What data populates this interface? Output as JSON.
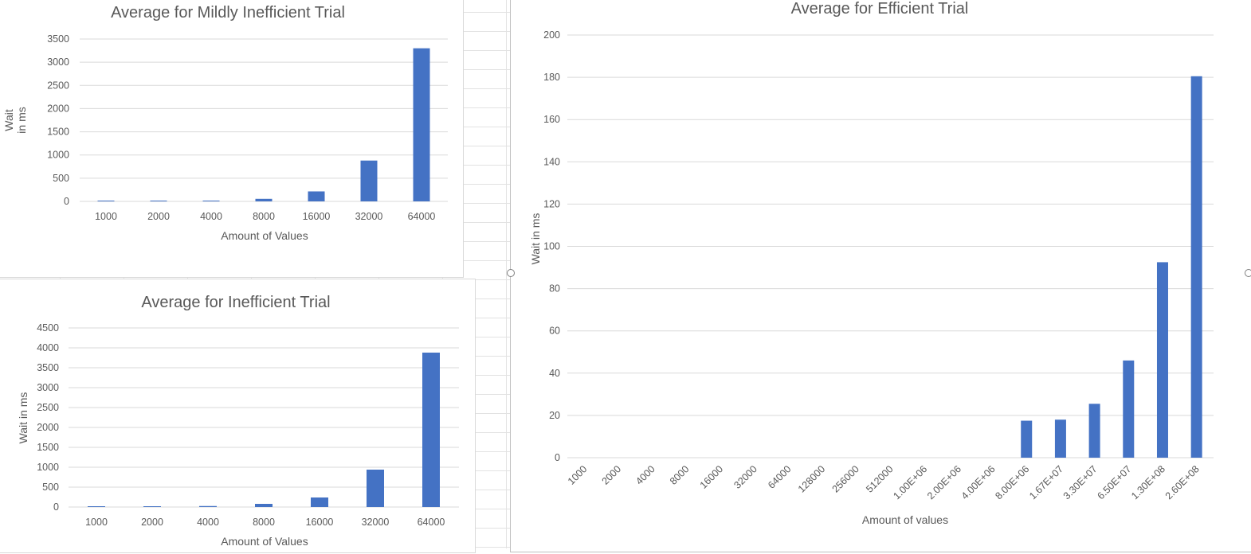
{
  "colors": {
    "bar": "#4472c4",
    "text": "#595959",
    "gridline": "#d9d9d9"
  },
  "chart_data": [
    {
      "id": "mild",
      "type": "bar",
      "title": "Average for Mildly Inefficient Trial",
      "xlabel": "Amount of Values",
      "ylabel": [
        "Wait",
        "in ms"
      ],
      "categories": [
        "1000",
        "2000",
        "4000",
        "8000",
        "16000",
        "32000",
        "64000"
      ],
      "values": [
        1,
        3,
        10,
        55,
        215,
        880,
        3300
      ],
      "ylim": [
        0,
        3500
      ],
      "yticks": [
        0,
        500,
        1000,
        1500,
        2000,
        2500,
        3000,
        3500
      ],
      "grid": true,
      "legend": "none"
    },
    {
      "id": "ineff",
      "type": "bar",
      "title": "Average for Inefficient Trial",
      "xlabel": "Amount of Values",
      "ylabel": "Wait in ms",
      "categories": [
        "1000",
        "2000",
        "4000",
        "8000",
        "16000",
        "32000",
        "64000"
      ],
      "values": [
        3,
        20,
        25,
        80,
        240,
        940,
        3880
      ],
      "ylim": [
        0,
        4500
      ],
      "yticks": [
        0,
        500,
        1000,
        1500,
        2000,
        2500,
        3000,
        3500,
        4000,
        4500
      ],
      "grid": true,
      "legend": "none"
    },
    {
      "id": "eff",
      "type": "bar",
      "title": "Average for Efficient Trial",
      "xlabel": "Amount of values",
      "ylabel": "Wait in ms",
      "categories": [
        "1000",
        "2000",
        "4000",
        "8000",
        "16000",
        "32000",
        "64000",
        "128000",
        "256000",
        "512000",
        "1.00E+06",
        "2.00E+06",
        "4.00E+06",
        "8.00E+06",
        "1.67E+07",
        "3.30E+07",
        "6.50E+07",
        "1.30E+08",
        "2.60E+08"
      ],
      "values": [
        0,
        0,
        0,
        0,
        0,
        0,
        0,
        0,
        0,
        0,
        0,
        0,
        0,
        17.5,
        18,
        25.5,
        46,
        92.5,
        180.5
      ],
      "ylim": [
        0,
        200
      ],
      "yticks": [
        0,
        20,
        40,
        60,
        80,
        100,
        120,
        140,
        160,
        180,
        200
      ],
      "grid": true,
      "legend": "none"
    }
  ]
}
